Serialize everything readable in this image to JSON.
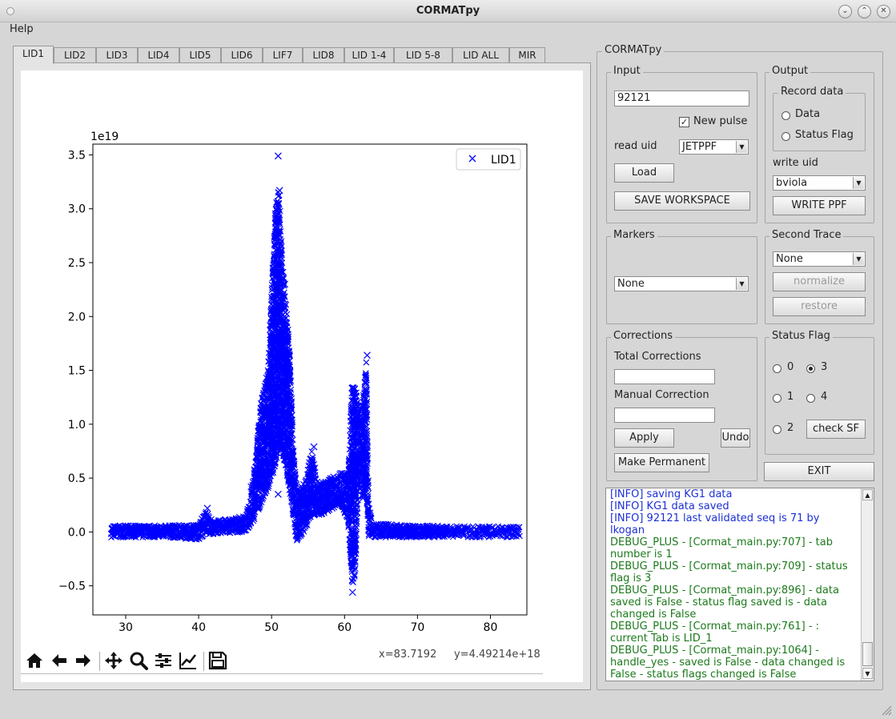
{
  "window": {
    "title": "CORMATpy"
  },
  "menu": {
    "help": "Help"
  },
  "tabs": [
    "LID1",
    "LID2",
    "LID3",
    "LID4",
    "LID5",
    "LID6",
    "LIF7",
    "LID8",
    "LID 1-4",
    "LID 5-8",
    "LID ALL",
    "MIR"
  ],
  "active_tab": "LID1",
  "panel": {
    "title": "CORMATpy"
  },
  "input": {
    "group": "Input",
    "pulse_value": "92121",
    "new_pulse_label": "New pulse",
    "new_pulse_checked": true,
    "read_uid_label": "read uid",
    "read_uid_value": "JETPPF",
    "load": "Load",
    "save_workspace": "SAVE WORKSPACE"
  },
  "output": {
    "group": "Output",
    "record_group": "Record data",
    "data_label": "Data",
    "status_flag_label": "Status Flag",
    "write_uid_label": "write uid",
    "write_uid_value": "bviola",
    "write_ppf": "WRITE PPF"
  },
  "markers": {
    "group": "Markers",
    "value": "None"
  },
  "second_trace": {
    "group": "Second Trace",
    "value": "None",
    "normalize": "normalize",
    "restore": "restore"
  },
  "corrections": {
    "group": "Corrections",
    "total_label": "Total Corrections",
    "total_value": "",
    "manual_label": "Manual Correction",
    "manual_value": "",
    "apply": "Apply",
    "undo": "Undo",
    "make_permanent": "Make Permanent"
  },
  "status_flag": {
    "group": "Status Flag",
    "options": [
      "0",
      "1",
      "2",
      "3",
      "4"
    ],
    "selected": "3",
    "check_sf": "check SF"
  },
  "exit": "EXIT",
  "log": [
    {
      "type": "info",
      "text": "[INFO] saving KG1 data"
    },
    {
      "type": "info",
      "text": "[INFO] KG1 data saved"
    },
    {
      "type": "info",
      "text": "[INFO] 92121 last validated seq is 71 by lkogan"
    },
    {
      "type": "dbg",
      "text": "DEBUG_PLUS - [Cormat_main.py:707] - tab number is 1"
    },
    {
      "type": "dbg",
      "text": "DEBUG_PLUS - [Cormat_main.py:709] - status flag is 3"
    },
    {
      "type": "dbg",
      "text": "DEBUG_PLUS - [Cormat_main.py:896] - data saved is False - status flag saved is - data changed is False"
    },
    {
      "type": "dbg",
      "text": "DEBUG_PLUS - [Cormat_main.py:761] - : current Tab is LID_1"
    },
    {
      "type": "dbg",
      "text": "DEBUG_PLUS - [Cormat_main.py:1064] - handle_yes - saved is False - data changed is False - status flags changed is False"
    }
  ],
  "toolbar": {
    "icons": [
      "home-icon",
      "back-icon",
      "forward-icon",
      "pan-icon",
      "zoom-icon",
      "configure-subplots-icon",
      "edit-axis-icon",
      "save-figure-icon"
    ],
    "x_readout": "x=83.7192",
    "y_readout": "y=4.49214e+18"
  },
  "colors": {
    "series": "#0000ff"
  },
  "chart_data": {
    "type": "scatter",
    "marker": "x",
    "scale_label": "1e19",
    "xlim": [
      25.5,
      85
    ],
    "ylim": [
      -0.77,
      3.6
    ],
    "xticks": [
      30,
      40,
      50,
      60,
      70,
      80
    ],
    "yticks": [
      -0.5,
      0.0,
      0.5,
      1.0,
      1.5,
      2.0,
      2.5,
      3.0,
      3.5
    ],
    "ytick_labels": [
      "−0.5",
      "0.0",
      "0.5",
      "1.0",
      "1.5",
      "2.0",
      "2.5",
      "3.0",
      "3.5"
    ],
    "legend_position": "top-right",
    "series": [
      {
        "name": "LID1",
        "color": "#0000ff",
        "envelope": [
          {
            "x": 28,
            "lo": -0.05,
            "hi": 0.06
          },
          {
            "x": 35,
            "lo": -0.05,
            "hi": 0.06
          },
          {
            "x": 40,
            "lo": -0.07,
            "hi": 0.07
          },
          {
            "x": 41,
            "lo": -0.02,
            "hi": 0.2
          },
          {
            "x": 42,
            "lo": -0.02,
            "hi": 0.1
          },
          {
            "x": 46.5,
            "lo": 0.0,
            "hi": 0.15
          },
          {
            "x": 47.5,
            "lo": 0.1,
            "hi": 0.5
          },
          {
            "x": 48.5,
            "lo": 0.25,
            "hi": 1.2
          },
          {
            "x": 49.5,
            "lo": 0.4,
            "hi": 1.5
          },
          {
            "x": 50.5,
            "lo": 0.6,
            "hi": 3.0
          },
          {
            "x": 51,
            "lo": 0.8,
            "hi": 3.2
          },
          {
            "x": 51.5,
            "lo": 0.7,
            "hi": 2.5
          },
          {
            "x": 52,
            "lo": 0.6,
            "hi": 2.1
          },
          {
            "x": 52.5,
            "lo": 0.3,
            "hi": 1.7
          },
          {
            "x": 53,
            "lo": 0.1,
            "hi": 0.8
          },
          {
            "x": 53.5,
            "lo": -0.1,
            "hi": 0.4
          },
          {
            "x": 54.5,
            "lo": 0.0,
            "hi": 0.45
          },
          {
            "x": 55.5,
            "lo": 0.15,
            "hi": 0.75
          },
          {
            "x": 56.5,
            "lo": 0.15,
            "hi": 0.45
          },
          {
            "x": 58,
            "lo": 0.2,
            "hi": 0.5
          },
          {
            "x": 59.5,
            "lo": 0.25,
            "hi": 0.55
          },
          {
            "x": 60.5,
            "lo": 0.1,
            "hi": 0.55
          },
          {
            "x": 61,
            "lo": -0.5,
            "hi": 1.35
          },
          {
            "x": 61.5,
            "lo": -0.4,
            "hi": 1.35
          },
          {
            "x": 62,
            "lo": 0.6,
            "hi": 1.1
          },
          {
            "x": 62.5,
            "lo": 0.3,
            "hi": 1.2
          },
          {
            "x": 63,
            "lo": 0.3,
            "hi": 1.6
          },
          {
            "x": 63.3,
            "lo": -0.05,
            "hi": 0.3
          },
          {
            "x": 63.8,
            "lo": -0.05,
            "hi": 0.08
          },
          {
            "x": 70,
            "lo": -0.05,
            "hi": 0.06
          },
          {
            "x": 84,
            "lo": -0.05,
            "hi": 0.05
          }
        ],
        "peaks": [
          {
            "x": 50.9,
            "y": 3.49
          },
          {
            "x": 51.1,
            "y": 3.17
          },
          {
            "x": 50.2,
            "y": 2.45
          },
          {
            "x": 51.8,
            "y": 2.3
          },
          {
            "x": 61.1,
            "y": -0.56
          },
          {
            "x": 63.1,
            "y": 1.64
          },
          {
            "x": 55.8,
            "y": 0.79
          },
          {
            "x": 47.2,
            "y": 0.42
          },
          {
            "x": 50.9,
            "y": 0.35
          },
          {
            "x": 41.2,
            "y": 0.22
          }
        ]
      }
    ]
  }
}
